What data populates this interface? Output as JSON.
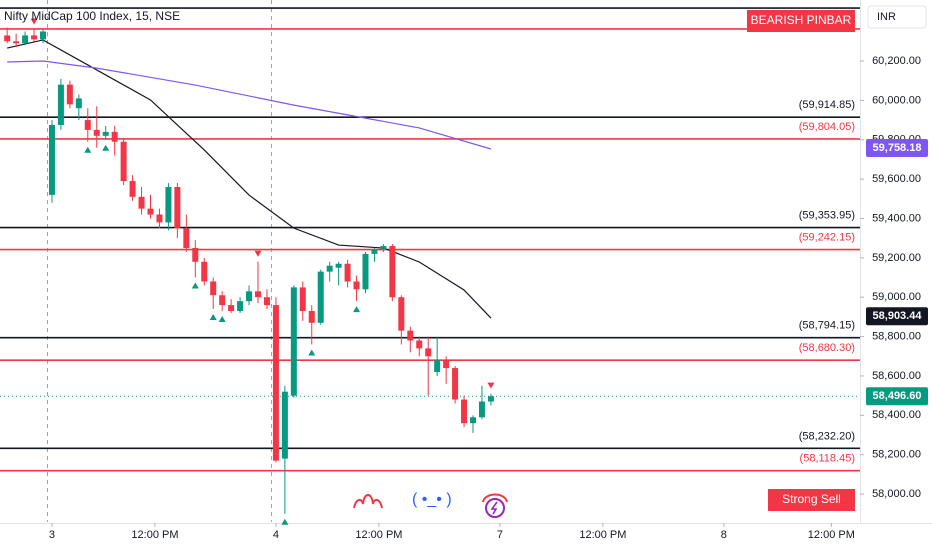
{
  "chart_data": {
    "type": "candlestick",
    "title": "Nifty MidCap 100 Index, 15, NSE",
    "currency": "INR",
    "badges": [
      {
        "text": "BEARISH PINBAR",
        "color": "#f23645",
        "position": "top"
      },
      {
        "text": "Strong Sell",
        "color": "#f23645",
        "position": "bottom"
      }
    ],
    "xlim": [
      -0.8,
      95.2
    ],
    "ylim": [
      57858,
      60510
    ],
    "xticks": [
      {
        "value": 5,
        "label": "3"
      },
      {
        "value": 16.5,
        "label": "12:00 PM"
      },
      {
        "value": 30,
        "label": "4"
      },
      {
        "value": 41.5,
        "label": "12:00 PM"
      },
      {
        "value": 55,
        "label": "7"
      },
      {
        "value": 66.5,
        "label": "12:00 PM"
      },
      {
        "value": 80,
        "label": "8"
      },
      {
        "value": 92,
        "label": "12:00 PM"
      }
    ],
    "yticks": [
      {
        "value": 58000,
        "label": "58,000.00"
      },
      {
        "value": 58200,
        "label": "58,200.00"
      },
      {
        "value": 58400,
        "label": "58,400.00"
      },
      {
        "value": 58600,
        "label": "58,600.00"
      },
      {
        "value": 58800,
        "label": "58,800.00"
      },
      {
        "value": 59000,
        "label": "59,000.00"
      },
      {
        "value": 59200,
        "label": "59,200.00"
      },
      {
        "value": 59400,
        "label": "59,400.00"
      },
      {
        "value": 59600,
        "label": "59,600.00"
      },
      {
        "value": 59800,
        "label": "59,800.00"
      },
      {
        "value": 60000,
        "label": "60,000.00"
      },
      {
        "value": 60200,
        "label": "60,200.00"
      }
    ],
    "session_breaks": [
      4.5,
      29.5
    ],
    "up_color": "#089981",
    "down_color": "#f23645",
    "x": [
      0,
      1,
      2,
      3,
      4,
      5,
      6,
      7,
      8,
      9,
      10,
      11,
      12,
      13,
      14,
      15,
      16,
      17,
      18,
      19,
      20,
      21,
      22,
      23,
      24,
      25,
      26,
      27,
      28,
      29,
      30,
      31,
      32,
      33,
      34,
      35,
      36,
      37,
      38,
      39,
      40,
      41,
      42,
      43,
      44,
      45,
      46,
      47,
      48,
      49,
      50,
      51,
      52,
      53,
      54
    ],
    "open": [
      60330,
      60300,
      60290,
      60330,
      60310,
      59520,
      59875,
      60080,
      59960,
      59900,
      59850,
      59820,
      59840,
      59790,
      59590,
      59510,
      59450,
      59420,
      59380,
      59560,
      59350,
      59250,
      59180,
      59080,
      59010,
      58960,
      58930,
      58980,
      59030,
      59000,
      58960,
      58180,
      58500,
      59050,
      58930,
      58870,
      59130,
      59150,
      59170,
      59080,
      59040,
      59220,
      59240,
      59260,
      59000,
      58830,
      58780,
      58740,
      58620,
      58680,
      58640,
      58480,
      58360,
      58390,
      58470
    ],
    "high": [
      60370,
      60340,
      60350,
      60360,
      60360,
      59900,
      60110,
      60100,
      60030,
      59960,
      59970,
      59870,
      59870,
      59810,
      59620,
      59560,
      59520,
      59450,
      59580,
      59580,
      59420,
      59290,
      59200,
      59100,
      59030,
      58990,
      59000,
      59060,
      59180,
      59040,
      59000,
      58550,
      59060,
      59080,
      58960,
      59140,
      59180,
      59180,
      59190,
      59110,
      59230,
      59250,
      59270,
      59270,
      59010,
      58850,
      58800,
      58800,
      58800,
      58700,
      58650,
      58500,
      58400,
      58550,
      58510
    ],
    "low": [
      60290,
      60270,
      60280,
      60300,
      60290,
      59480,
      59850,
      59960,
      59900,
      59790,
      59760,
      59800,
      59720,
      59570,
      59490,
      59420,
      59400,
      59350,
      59340,
      59300,
      59230,
      59100,
      59060,
      58940,
      58930,
      58920,
      58920,
      58960,
      58970,
      58940,
      58160,
      57900,
      58490,
      58880,
      58760,
      58860,
      59080,
      59060,
      59050,
      58980,
      59020,
      59180,
      59230,
      58980,
      58760,
      58720,
      58700,
      58500,
      58600,
      58560,
      58460,
      58340,
      58310,
      58380,
      58450
    ],
    "close": [
      60300,
      60290,
      60330,
      60310,
      60350,
      59875,
      60080,
      59980,
      60010,
      59850,
      59820,
      59840,
      59790,
      59590,
      59510,
      59450,
      59420,
      59380,
      59560,
      59350,
      59250,
      59180,
      59080,
      59010,
      58960,
      58930,
      58980,
      59030,
      59000,
      58960,
      58170,
      58520,
      59050,
      58930,
      58870,
      59130,
      59160,
      59170,
      59080,
      59040,
      59220,
      59240,
      59260,
      59000,
      58830,
      58780,
      58740,
      58700,
      58680,
      58640,
      58480,
      58360,
      58390,
      58470,
      58497
    ],
    "moving_averages": [
      {
        "color": "#131722",
        "x": [
          0,
          4,
          9,
          16,
          22,
          27,
          32,
          37,
          42,
          46,
          51,
          54
        ],
        "values": [
          60266,
          60307,
          60180,
          60002,
          59748,
          59519,
          59351,
          59265,
          59250,
          59179,
          59037,
          58894
        ]
      },
      {
        "color": "#7e57f2",
        "x": [
          0,
          4,
          10,
          21,
          32,
          40,
          46,
          54
        ],
        "values": [
          60195,
          60200,
          60164,
          60078,
          59976,
          59910,
          59860,
          59753
        ]
      }
    ],
    "levels": [
      {
        "value": 60469,
        "color": "#131722"
      },
      {
        "value": 60363,
        "color": "#f23645"
      },
      {
        "value": 59914.85,
        "label": "(59,914.85)",
        "color": "#131722"
      },
      {
        "value": 59804.05,
        "label": "(59,804.05)",
        "color": "#f23645"
      },
      {
        "value": 59353.95,
        "label": "(59,353.95)",
        "color": "#131722"
      },
      {
        "value": 59242.15,
        "label": "(59,242.15)",
        "color": "#f23645"
      },
      {
        "value": 58794.15,
        "label": "(58,794.15)",
        "color": "#131722"
      },
      {
        "value": 58680.3,
        "label": "(58,680.30)",
        "color": "#f23645"
      },
      {
        "value": 58232.2,
        "label": "(58,232.20)",
        "color": "#131722"
      },
      {
        "value": 58118.45,
        "label": "(58,118.45)",
        "color": "#f23645"
      }
    ],
    "price_labels": [
      {
        "value": 59758.18,
        "label": "59,758.18",
        "color": "#7e57f2"
      },
      {
        "value": 58903.44,
        "label": "58,903.44",
        "color": "#131722"
      },
      {
        "value": 58496.6,
        "label": "58,496.60",
        "color": "#089981"
      }
    ],
    "signals": {
      "buy": [
        9,
        11,
        21,
        23,
        24,
        31,
        34,
        39
      ],
      "sell": [
        3,
        28,
        54
      ]
    }
  }
}
